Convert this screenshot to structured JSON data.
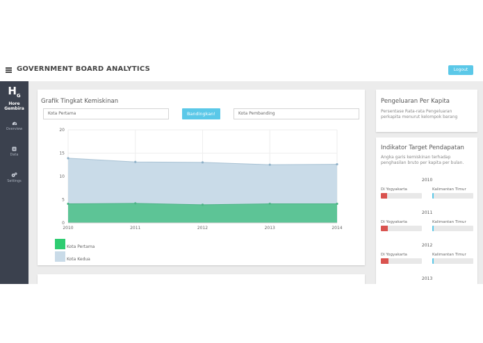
{
  "app": {
    "title": "GOVERNMENT BOARD ANALYTICS",
    "logout_label": "Logout"
  },
  "sidebar": {
    "logo_text_line1": "Hore",
    "logo_text_line2": "Gembira",
    "items": [
      {
        "label": "Overview",
        "icon": "dashboard-icon"
      },
      {
        "label": "Data",
        "icon": "database-icon"
      },
      {
        "label": "Settings",
        "icon": "gear-icon"
      }
    ]
  },
  "poverty_card": {
    "title": "Grafik Tingkat Kemiskinan",
    "city_first_placeholder": "Kota Pertama",
    "compare_label": "Bandingkan!",
    "city_compare_placeholder": "Kota Pembanding",
    "legend": [
      {
        "label": "Kota Pertama",
        "color": "#2ecc71"
      },
      {
        "label": "Kota Kedua",
        "color": "#c9dbe8"
      }
    ]
  },
  "chart_data": {
    "type": "area",
    "x": [
      2010,
      2011,
      2012,
      2013,
      2014
    ],
    "ylim": [
      0,
      20
    ],
    "yticks": [
      0,
      5,
      10,
      15,
      20
    ],
    "grid": true,
    "series": [
      {
        "name": "Kota Pertama",
        "values": [
          4.1,
          4.2,
          3.9,
          4.1,
          4.1
        ],
        "color": "#5dc496"
      },
      {
        "name": "Kota Kedua",
        "values": [
          13.9,
          13.1,
          13.0,
          12.5,
          12.6
        ],
        "color": "#c9dbe8"
      }
    ]
  },
  "spending_card": {
    "title": "Pengeluaran Per Kapita",
    "description_line1": "Persentase Rata-rata Pengeluaran",
    "description_line2": "perkapita menurut kelompok barang"
  },
  "income_card": {
    "title": "Indikator Target Pendapatan",
    "description_line1": "Angka garis kemiskinan terhadap",
    "description_line2": "penghasilan bruto per kapita per bulan.",
    "years": [
      {
        "year": "2010",
        "left_label": "Di Yogyakarta",
        "left_value": 0.15,
        "right_label": "Kalimantan Timur",
        "right_value": 0.04
      },
      {
        "year": "2011",
        "left_label": "Di Yogyakarta",
        "left_value": 0.17,
        "right_label": "Kalimantan Timur",
        "right_value": 0.04
      },
      {
        "year": "2012",
        "left_label": "Di Yogyakarta",
        "left_value": 0.19,
        "right_label": "Kalimantan Timur",
        "right_value": 0.04
      }
    ],
    "partial_year": "2013",
    "left_color": "#d9534f",
    "right_color": "#5bc8e8"
  }
}
